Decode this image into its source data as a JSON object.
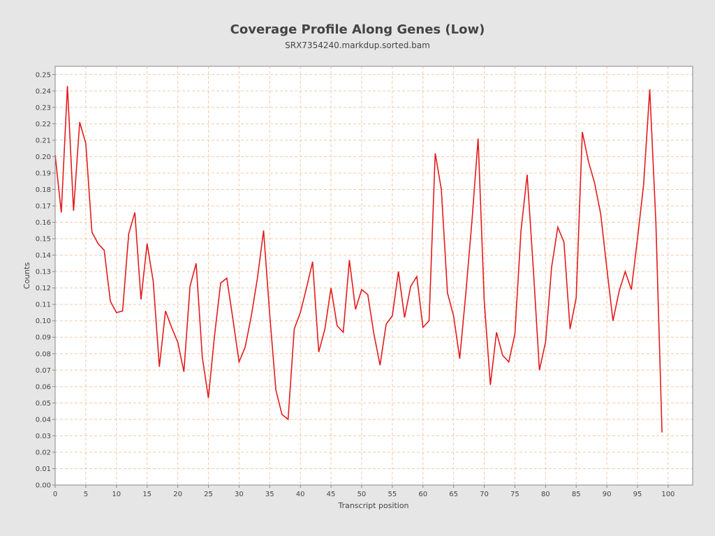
{
  "chart_data": {
    "type": "line",
    "title": "Coverage Profile Along Genes (Low)",
    "subtitle": "SRX7354240.markdup.sorted.bam",
    "xlabel": "Transcript position",
    "ylabel": "Counts",
    "xlim": [
      0,
      104
    ],
    "ylim": [
      0,
      0.255
    ],
    "x_ticks": [
      0,
      5,
      10,
      15,
      20,
      25,
      30,
      35,
      40,
      45,
      50,
      55,
      60,
      65,
      70,
      75,
      80,
      85,
      90,
      95,
      100
    ],
    "y_ticks": [
      0.0,
      0.01,
      0.02,
      0.03,
      0.04,
      0.05,
      0.06,
      0.07,
      0.08,
      0.09,
      0.1,
      0.11,
      0.12,
      0.13,
      0.14,
      0.15,
      0.16,
      0.17,
      0.18,
      0.19,
      0.2,
      0.21,
      0.22,
      0.23,
      0.24,
      0.25
    ],
    "y_tick_labels": [
      "0.00",
      "0.01",
      "0.02",
      "0.03",
      "0.04",
      "0.05",
      "0.06",
      "0.07",
      "0.08",
      "0.09",
      "0.10",
      "0.11",
      "0.12",
      "0.13",
      "0.14",
      "0.15",
      "0.16",
      "0.17",
      "0.18",
      "0.19",
      "0.20",
      "0.21",
      "0.22",
      "0.23",
      "0.24",
      "0.25"
    ],
    "grid": true,
    "colors": {
      "line": "#e31a1c",
      "grid": "#f4c9a6",
      "plot_bg": "#ffffff",
      "page_bg": "#e6e6e6",
      "axis": "#888888"
    },
    "series": [
      {
        "x": [
          0,
          1,
          2,
          3,
          4,
          5,
          6,
          7,
          8,
          9,
          10,
          11,
          12,
          13,
          14,
          15,
          16,
          17,
          18,
          19,
          20,
          21,
          22,
          23,
          24,
          25,
          26,
          27,
          28,
          29,
          30,
          31,
          32,
          33,
          34,
          35,
          36,
          37,
          38,
          39,
          40,
          41,
          42,
          43,
          44,
          45,
          46,
          47,
          48,
          49,
          50,
          51,
          52,
          53,
          54,
          55,
          56,
          57,
          58,
          59,
          60,
          61,
          62,
          63,
          64,
          65,
          66,
          67,
          68,
          69,
          70,
          71,
          72,
          73,
          74,
          75,
          76,
          77,
          78,
          79,
          80,
          81,
          82,
          83,
          84,
          85,
          86,
          87,
          88,
          89,
          90,
          91,
          92,
          93,
          94,
          95,
          96,
          97,
          98,
          99
        ],
        "values": [
          0.201,
          0.166,
          0.243,
          0.167,
          0.221,
          0.208,
          0.154,
          0.147,
          0.143,
          0.112,
          0.105,
          0.106,
          0.153,
          0.166,
          0.113,
          0.147,
          0.124,
          0.072,
          0.106,
          0.096,
          0.087,
          0.069,
          0.121,
          0.135,
          0.078,
          0.053,
          0.091,
          0.123,
          0.126,
          0.101,
          0.075,
          0.084,
          0.103,
          0.126,
          0.155,
          0.104,
          0.058,
          0.043,
          0.04,
          0.095,
          0.105,
          0.12,
          0.136,
          0.081,
          0.095,
          0.12,
          0.097,
          0.093,
          0.137,
          0.107,
          0.119,
          0.116,
          0.092,
          0.073,
          0.098,
          0.103,
          0.13,
          0.102,
          0.121,
          0.127,
          0.096,
          0.1,
          0.202,
          0.18,
          0.117,
          0.103,
          0.077,
          0.117,
          0.161,
          0.211,
          0.112,
          0.061,
          0.093,
          0.079,
          0.075,
          0.092,
          0.155,
          0.189,
          0.132,
          0.07,
          0.087,
          0.133,
          0.157,
          0.148,
          0.095,
          0.114,
          0.215,
          0.197,
          0.184,
          0.165,
          0.132,
          0.1,
          0.118,
          0.13,
          0.119,
          0.15,
          0.183,
          0.241,
          0.16,
          0.032
        ]
      }
    ]
  }
}
